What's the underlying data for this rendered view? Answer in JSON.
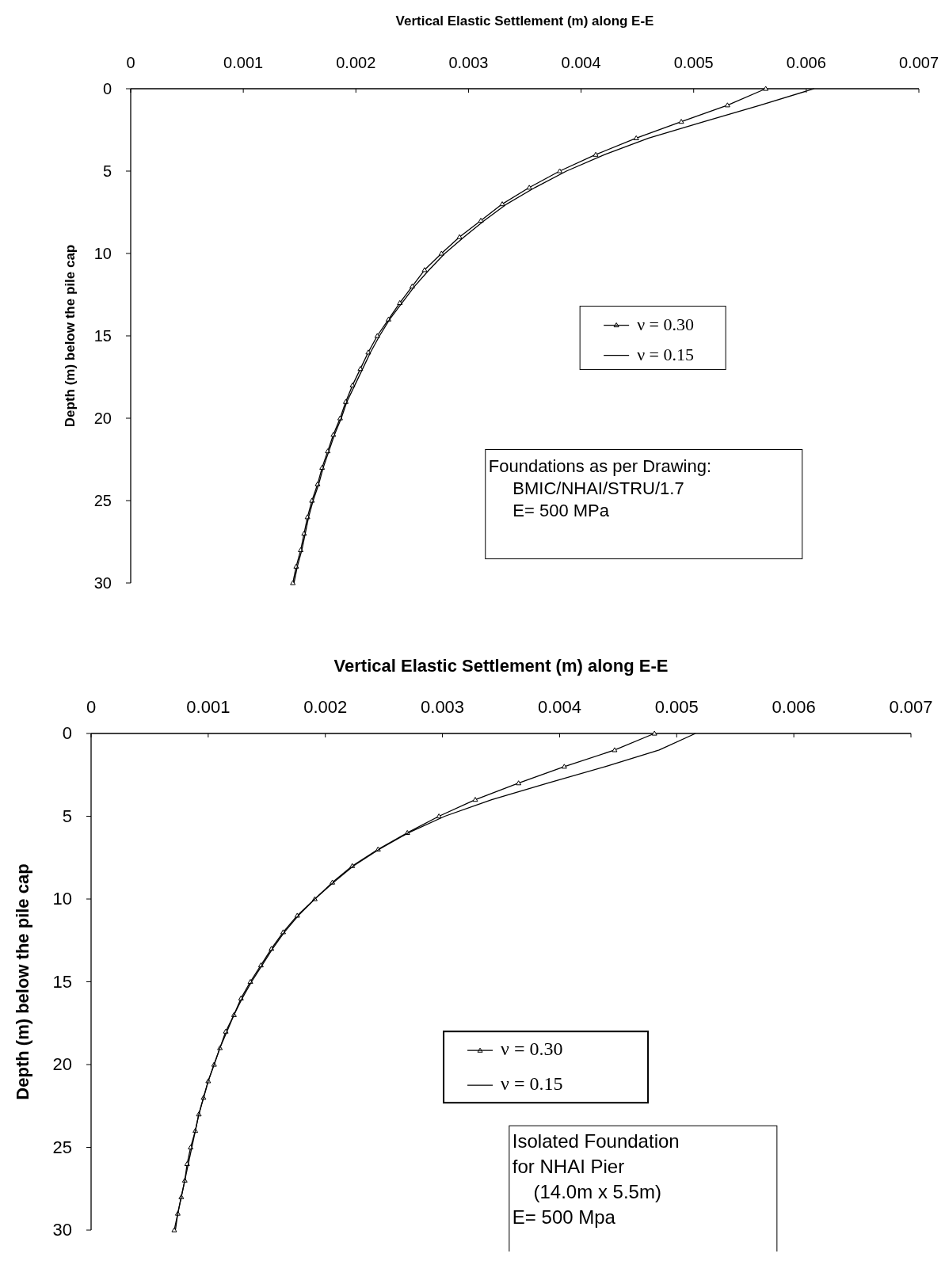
{
  "chart_data": [
    {
      "type": "line",
      "xlabel": "Vertical Elastic Settlement (m) along E-E",
      "ylabel": "Depth (m) below the pile cap",
      "xlim": [
        0,
        0.007
      ],
      "xticks": [
        0,
        0.001,
        0.002,
        0.003,
        0.004,
        0.005,
        0.006,
        0.007
      ],
      "ylim": [
        30,
        0
      ],
      "yticks": [
        0,
        5,
        10,
        15,
        20,
        25,
        30
      ],
      "legend": "center right",
      "annotations": [
        "Foundations as per Drawing:\n     BMIC/NHAI/STRU/1.7\n     E= 500 MPa"
      ],
      "series": [
        {
          "name": "ν = 0.30",
          "color": "#000000",
          "marker": "triangle",
          "values": [
            0,
            1,
            2,
            3,
            4,
            5,
            6,
            7,
            8,
            9,
            10,
            11,
            12,
            13,
            14,
            15,
            16,
            17,
            18,
            19,
            20,
            21,
            22,
            23,
            24,
            25,
            26,
            27,
            28,
            29,
            30
          ],
          "x": [
            0.00564,
            0.0053,
            0.00489,
            0.00449,
            0.00413,
            0.00381,
            0.00354,
            0.0033,
            0.00311,
            0.00292,
            0.00276,
            0.00261,
            0.0025,
            0.00239,
            0.00229,
            0.00219,
            0.00211,
            0.00204,
            0.00197,
            0.00191,
            0.00186,
            0.0018,
            0.00175,
            0.0017,
            0.00166,
            0.00161,
            0.00157,
            0.00154,
            0.00151,
            0.00147,
            0.00144
          ]
        },
        {
          "name": "ν = 0.15",
          "color": "#000000",
          "marker": "none",
          "values": [
            0,
            1,
            2,
            3,
            4,
            5,
            6,
            7,
            8,
            9,
            10,
            11,
            12,
            13,
            14,
            15,
            16,
            17,
            18,
            19,
            20,
            21,
            22,
            23,
            24,
            25,
            26,
            27,
            28,
            29,
            30
          ],
          "x": [
            0.00607,
            0.00559,
            0.00509,
            0.0046,
            0.00421,
            0.00387,
            0.00359,
            0.00334,
            0.00314,
            0.00296,
            0.00279,
            0.00265,
            0.00252,
            0.00241,
            0.0023,
            0.00221,
            0.00213,
            0.00206,
            0.00199,
            0.00192,
            0.00187,
            0.00181,
            0.00176,
            0.00171,
            0.00167,
            0.00162,
            0.00158,
            0.00155,
            0.00152,
            0.00148,
            0.00145
          ]
        }
      ]
    },
    {
      "type": "line",
      "xlabel": "Vertical Elastic Settlement (m) along E-E",
      "ylabel": "Depth (m) below the pile cap",
      "xlim": [
        0,
        0.007
      ],
      "xticks": [
        0,
        0.001,
        0.002,
        0.003,
        0.004,
        0.005,
        0.006,
        0.007
      ],
      "ylim": [
        30,
        0
      ],
      "yticks": [
        0,
        5,
        10,
        15,
        20,
        25,
        30
      ],
      "legend": "center",
      "annotations": [
        "Isolated Foundation\nfor NHAI Pier\n    (14.0m x 5.5m)\nE= 500 Mpa"
      ],
      "series": [
        {
          "name": "ν = 0.30",
          "color": "#000000",
          "marker": "triangle",
          "values": [
            0,
            1,
            2,
            3,
            4,
            5,
            6,
            7,
            8,
            9,
            10,
            11,
            12,
            13,
            14,
            15,
            16,
            17,
            18,
            19,
            20,
            21,
            22,
            23,
            24,
            25,
            26,
            27,
            28,
            29,
            30
          ],
          "x": [
            0.00481,
            0.00447,
            0.00404,
            0.00365,
            0.00328,
            0.00297,
            0.0027,
            0.00245,
            0.00223,
            0.00206,
            0.00191,
            0.00176,
            0.00164,
            0.00154,
            0.00145,
            0.00136,
            0.00128,
            0.00122,
            0.00115,
            0.0011,
            0.00105,
            0.001,
            0.00096,
            0.00092,
            0.00089,
            0.00085,
            0.00082,
            0.0008,
            0.00077,
            0.00074,
            0.00071
          ]
        },
        {
          "name": "ν = 0.15",
          "color": "#000000",
          "marker": "none",
          "values": [
            0,
            1,
            2,
            3,
            4,
            5,
            6,
            7,
            8,
            9,
            10,
            11,
            12,
            13,
            14,
            15,
            16,
            17,
            18,
            19,
            20,
            21,
            22,
            23,
            24,
            25,
            26,
            27,
            28,
            29,
            30
          ],
          "x": [
            0.00516,
            0.00485,
            0.00439,
            0.0039,
            0.00342,
            0.00302,
            0.00271,
            0.00246,
            0.00224,
            0.00207,
            0.00191,
            0.00177,
            0.00165,
            0.00155,
            0.00146,
            0.00137,
            0.00129,
            0.00122,
            0.00116,
            0.0011,
            0.00105,
            0.001,
            0.00096,
            0.00092,
            0.00089,
            0.00086,
            0.00083,
            0.0008,
            0.00077,
            0.00074,
            0.00072
          ]
        }
      ]
    }
  ]
}
